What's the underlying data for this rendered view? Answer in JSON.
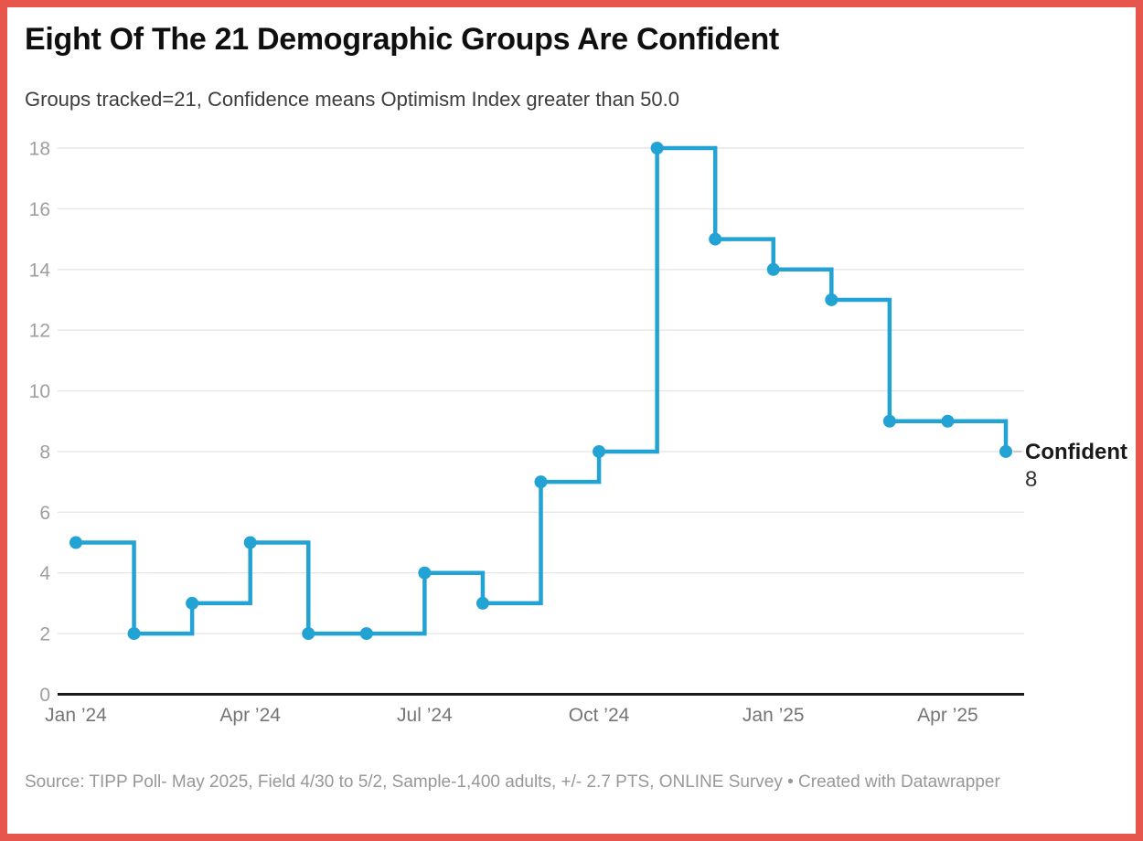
{
  "header": {
    "title": "Eight Of The 21 Demographic Groups Are Confident",
    "subtitle": "Groups tracked=21, Confidence means Optimism Index greater than 50.0"
  },
  "chart_data": {
    "type": "line",
    "line_style": "step-before",
    "title": "Eight Of The 21 Demographic Groups Are Confident",
    "subtitle": "Groups tracked=21, Confidence means Optimism Index greater than 50.0",
    "categories": [
      "Jan 2024",
      "Feb 2024",
      "Mar 2024",
      "Apr 2024",
      "May 2024",
      "Jun 2024",
      "Jul 2024",
      "Aug 2024",
      "Sep 2024",
      "Oct 2024",
      "Nov 2024",
      "Dec 2024",
      "Jan 2025",
      "Feb 2025",
      "Mar 2025",
      "Apr 2025",
      "May 2025"
    ],
    "series": [
      {
        "name": "Confident",
        "values": [
          5,
          2,
          3,
          5,
          2,
          2,
          4,
          3,
          7,
          8,
          18,
          15,
          14,
          13,
          9,
          9,
          8
        ]
      }
    ],
    "end_label": {
      "name": "Confident",
      "value": "8"
    },
    "x_ticks": [
      {
        "index": 0,
        "label": "Jan ’24"
      },
      {
        "index": 3,
        "label": "Apr ’24"
      },
      {
        "index": 6,
        "label": "Jul ’24"
      },
      {
        "index": 9,
        "label": "Oct ’24"
      },
      {
        "index": 12,
        "label": "Jan ’25"
      },
      {
        "index": 15,
        "label": "Apr ’25"
      }
    ],
    "y_ticks": [
      0,
      2,
      4,
      6,
      8,
      10,
      12,
      14,
      16,
      18
    ],
    "ylim": [
      0,
      18
    ],
    "grid": true,
    "markers": true,
    "legend_position": "end-of-line",
    "colors": {
      "line": "#23a2d4",
      "axis": "#1a1a1a",
      "grid": "#e6e6e6",
      "y_label": "#9e9e9e",
      "x_label": "#757575",
      "frame_border": "#e7564c",
      "annotation_name": "#1a1a1a",
      "annotation_value": "#333333"
    }
  },
  "footer": {
    "source": "Source: TIPP Poll- May 2025, Field 4/30 to 5/2, Sample-1,400 adults, +/- 2.7 PTS, ONLINE Survey • Created with Datawrapper"
  }
}
